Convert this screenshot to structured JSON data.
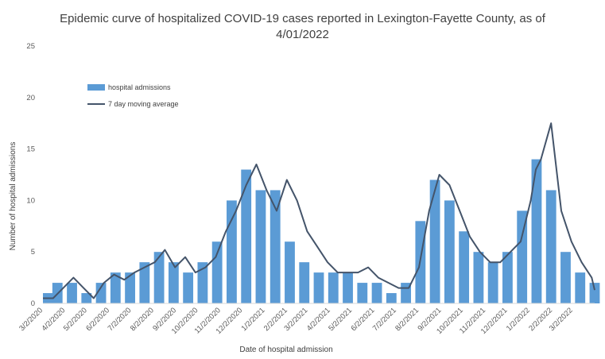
{
  "chart_data": {
    "type": "bar",
    "title_lines": [
      "Epidemic curve of hospitalized COVID-19 cases reported in Lexington-Fayette County, as of",
      "4/01/2022"
    ],
    "xlabel": "Date of hospital admission",
    "ylabel": "Number of hospital admissions",
    "ylim": [
      0,
      25
    ],
    "yticks": [
      0,
      5,
      10,
      15,
      20,
      25
    ],
    "xlim": [
      "2020-03-02",
      "2022-04-01"
    ],
    "x_tick_labels": [
      "3/2/2020",
      "4/2/2020",
      "5/2/2020",
      "6/2/2020",
      "7/2/2020",
      "8/2/2020",
      "9/2/2020",
      "10/2/2020",
      "11/2/2020",
      "12/2/2020",
      "1/2/2021",
      "2/2/2021",
      "3/2/2021",
      "4/2/2021",
      "5/2/2021",
      "6/2/2021",
      "7/2/2021",
      "8/2/2021",
      "9/2/2021",
      "10/2/2021",
      "11/2/2021",
      "12/2/2021",
      "1/2/2022",
      "2/2/2022",
      "3/2/2022"
    ],
    "legend_position": "upper-left",
    "grid": false,
    "colors": {
      "bars": "#5b9bd5",
      "line": "#44546a"
    },
    "series": [
      {
        "name": "hospital admissions",
        "type": "bar",
        "x": [
          "2020-03-02",
          "2020-03-22",
          "2020-04-11",
          "2020-05-01",
          "2020-05-21",
          "2020-06-10",
          "2020-06-30",
          "2020-07-20",
          "2020-08-09",
          "2020-08-29",
          "2020-09-18",
          "2020-10-08",
          "2020-10-28",
          "2020-11-17",
          "2020-12-07",
          "2020-12-27",
          "2021-01-16",
          "2021-02-05",
          "2021-02-25",
          "2021-03-17",
          "2021-04-06",
          "2021-04-26",
          "2021-05-16",
          "2021-06-05",
          "2021-06-25",
          "2021-07-15",
          "2021-08-04",
          "2021-08-24",
          "2021-09-13",
          "2021-10-03",
          "2021-10-23",
          "2021-11-12",
          "2021-12-02",
          "2021-12-22",
          "2022-01-11",
          "2022-01-31",
          "2022-02-20",
          "2022-03-12",
          "2022-04-01"
        ],
        "values": [
          1,
          2,
          2,
          1,
          2,
          3,
          3,
          4,
          5,
          4,
          3,
          4,
          6,
          10,
          13,
          11,
          11,
          6,
          4,
          3,
          3,
          3,
          2,
          2,
          1,
          2,
          8,
          12,
          10,
          7,
          5,
          4,
          5,
          9,
          14,
          11,
          5,
          3,
          2
        ]
      },
      {
        "name": "7 day moving average",
        "type": "line",
        "x": [
          "2020-03-02",
          "2020-03-16",
          "2020-03-30",
          "2020-04-13",
          "2020-04-27",
          "2020-05-11",
          "2020-05-25",
          "2020-06-08",
          "2020-06-22",
          "2020-07-06",
          "2020-07-20",
          "2020-08-03",
          "2020-08-17",
          "2020-08-31",
          "2020-09-14",
          "2020-09-28",
          "2020-10-12",
          "2020-10-26",
          "2020-11-09",
          "2020-11-23",
          "2020-12-07",
          "2020-12-21",
          "2021-01-04",
          "2021-01-18",
          "2021-02-01",
          "2021-02-15",
          "2021-03-01",
          "2021-03-15",
          "2021-03-29",
          "2021-04-12",
          "2021-04-26",
          "2021-05-10",
          "2021-05-24",
          "2021-06-07",
          "2021-06-21",
          "2021-07-05",
          "2021-07-19",
          "2021-08-02",
          "2021-08-16",
          "2021-08-30",
          "2021-09-13",
          "2021-09-27",
          "2021-10-11",
          "2021-10-25",
          "2021-11-08",
          "2021-11-22",
          "2021-12-06",
          "2021-12-20",
          "2022-01-03",
          "2022-01-10",
          "2022-01-17",
          "2022-01-31",
          "2022-02-14",
          "2022-02-28",
          "2022-03-14",
          "2022-03-28",
          "2022-04-01"
        ],
        "values": [
          0.5,
          0.5,
          1.5,
          2.5,
          1.5,
          0.5,
          2.0,
          2.8,
          2.3,
          3.0,
          3.5,
          4.0,
          5.2,
          3.5,
          4.5,
          3.0,
          3.5,
          4.5,
          7.0,
          9.0,
          11.5,
          13.5,
          11.0,
          9.0,
          12.0,
          10.0,
          7.0,
          5.5,
          4.0,
          3.0,
          3.0,
          3.0,
          3.5,
          2.5,
          2.0,
          1.5,
          1.5,
          3.5,
          9.0,
          12.5,
          11.5,
          9.0,
          6.5,
          5.0,
          4.0,
          4.0,
          5.0,
          6.0,
          10.0,
          13.0,
          14.0,
          17.5,
          9.0,
          6.0,
          4.0,
          2.5,
          1.3
        ]
      }
    ]
  }
}
